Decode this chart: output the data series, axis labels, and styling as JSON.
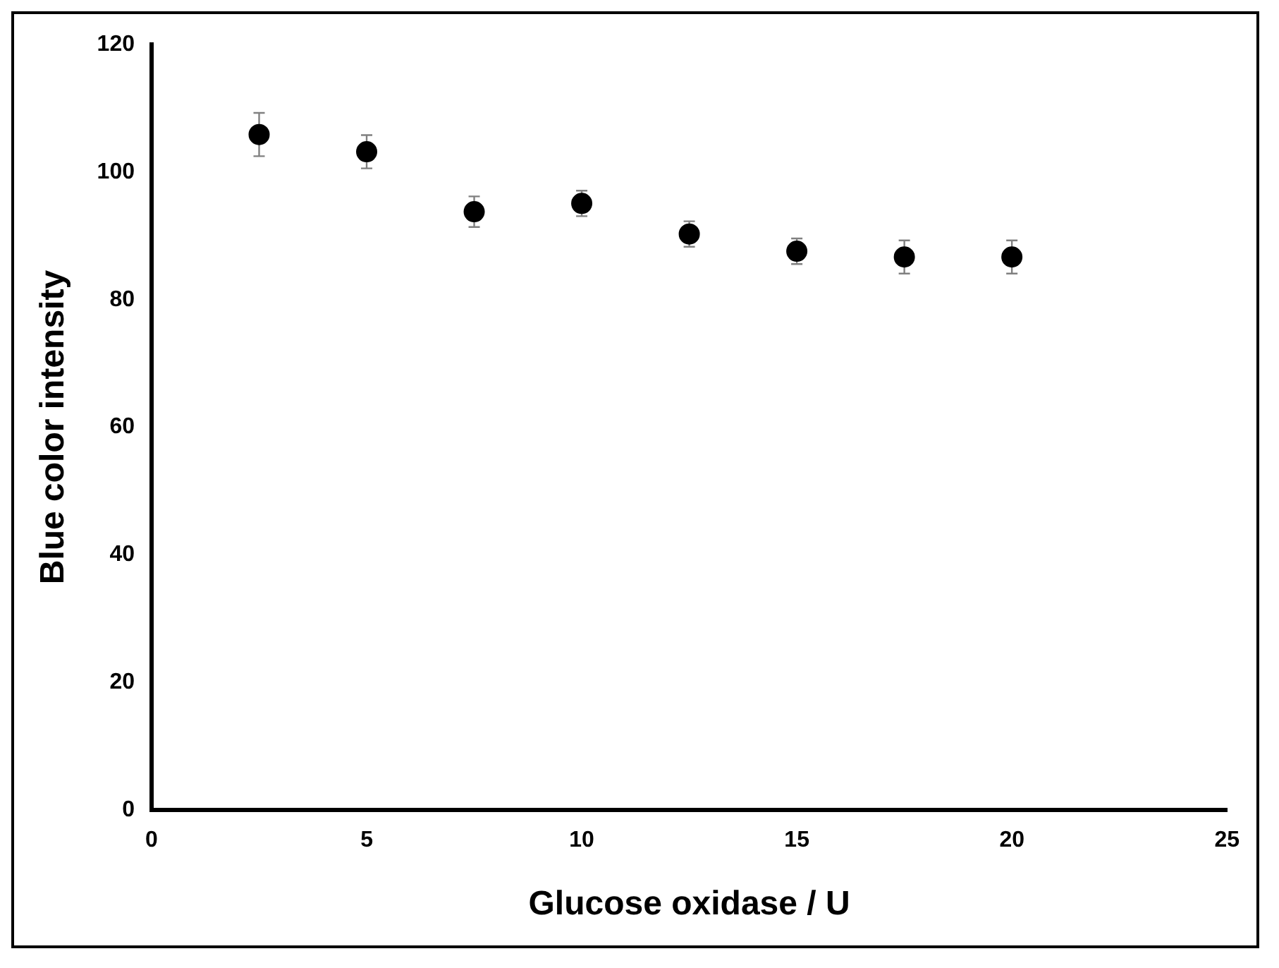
{
  "chart_data": {
    "type": "scatter",
    "xlabel": "Glucose oxidase / U",
    "ylabel": "Blue color intensity",
    "x": [
      2.5,
      5,
      7.5,
      10,
      12.5,
      15,
      17.5,
      20
    ],
    "series": [
      {
        "color": "#000000",
        "values": [
          105.9,
          103.2,
          93.8,
          95.1,
          90.3,
          87.6,
          86.7,
          86.7
        ],
        "errors": [
          3.4,
          2.6,
          2.4,
          2,
          2,
          2,
          2.6,
          2.6
        ]
      }
    ],
    "xlim": [
      0,
      25
    ],
    "xticks": [
      0,
      5,
      10,
      15,
      20,
      25
    ],
    "ylim": [
      0,
      120
    ],
    "yticks": [
      0,
      20,
      40,
      60,
      80,
      100,
      120
    ],
    "grid": false,
    "legend": false,
    "marker": "circle"
  }
}
